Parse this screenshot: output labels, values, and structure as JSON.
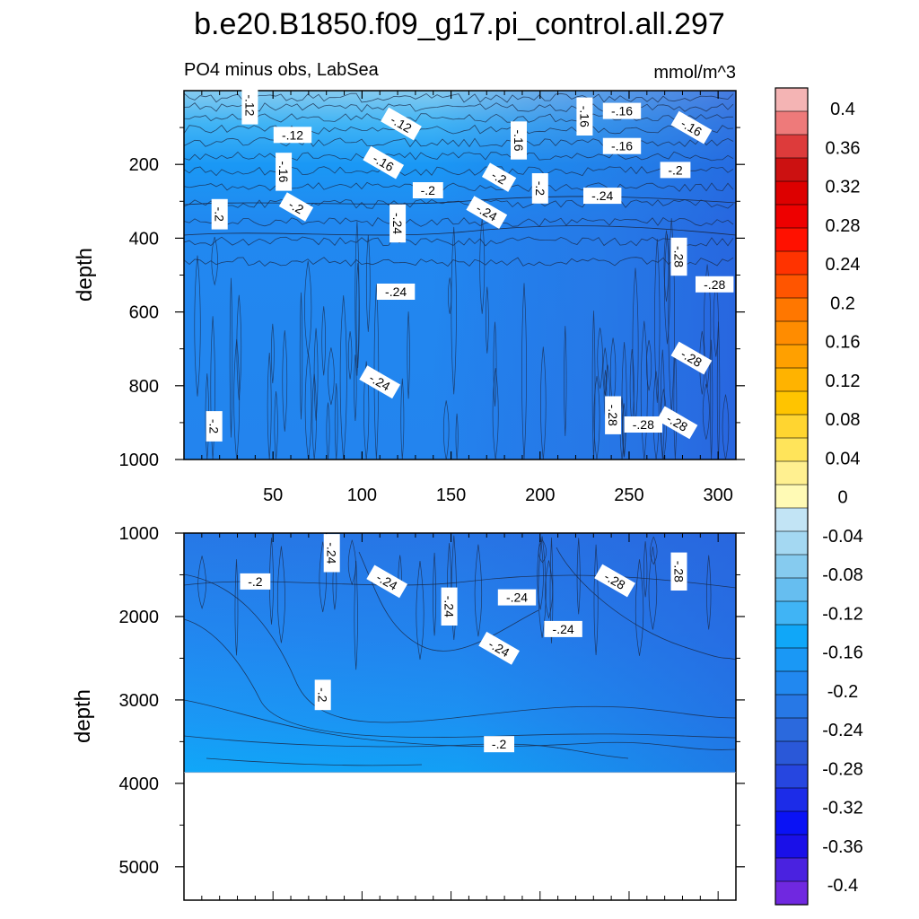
{
  "title": "b.e20.B1850.f09_g17.pi_control.all.297",
  "subtitle_left": "PO4 minus obs, LabSea",
  "subtitle_right": "mmol/m^3",
  "colorbar": {
    "labels": [
      "0.4",
      "0.36",
      "0.32",
      "0.28",
      "0.24",
      "0.2",
      "0.16",
      "0.12",
      "0.08",
      "0.04",
      "0",
      "-0.04",
      "-0.08",
      "-0.12",
      "-0.16",
      "-0.2",
      "-0.24",
      "-0.28",
      "-0.32",
      "-0.36",
      "-0.4"
    ],
    "colors_top_to_bottom": [
      "#F4B4B4",
      "#EE7A7A",
      "#DD3B3B",
      "#CC1111",
      "#DD0000",
      "#EE0000",
      "#FF1100",
      "#FF3300",
      "#FF5500",
      "#FF7700",
      "#FF8C00",
      "#FFA000",
      "#FFB300",
      "#FFC400",
      "#FFD530",
      "#FFE45A",
      "#FFF090",
      "#FFFAB5",
      "#C2E4F5",
      "#A4D8F2",
      "#86CBEF",
      "#66BEF0",
      "#40B4F5",
      "#10A7F8",
      "#1A98F5",
      "#2188F0",
      "#2778E6",
      "#2B69DD",
      "#2A58D8",
      "#2646E0",
      "#1C2CE8",
      "#0A12F5",
      "#1A10E8",
      "#4A22E0",
      "#7028E0"
    ]
  },
  "chart_data": [
    {
      "type": "contour",
      "panel": "upper",
      "xlabel": "",
      "ylabel": "depth",
      "xlim": [
        0,
        310
      ],
      "ylim": [
        1000,
        0
      ],
      "xticks": [
        50,
        100,
        150,
        200,
        250,
        300
      ],
      "yticks": [
        200,
        400,
        600,
        800,
        1000
      ],
      "contour_labels": [
        {
          "text": "-.12",
          "x": 37,
          "y": 40
        },
        {
          "text": "-.12",
          "x": 61,
          "y": 120
        },
        {
          "text": "-.12",
          "x": 122,
          "y": 90
        },
        {
          "text": "-.16",
          "x": 225,
          "y": 70
        },
        {
          "text": "-.16",
          "x": 246,
          "y": 55
        },
        {
          "text": "-.16",
          "x": 285,
          "y": 100
        },
        {
          "text": "-.16",
          "x": 188,
          "y": 135
        },
        {
          "text": "-.16",
          "x": 246,
          "y": 150
        },
        {
          "text": "-.16",
          "x": 112,
          "y": 195
        },
        {
          "text": "-.16",
          "x": 56,
          "y": 220
        },
        {
          "text": "-.2",
          "x": 276,
          "y": 215
        },
        {
          "text": "-.2",
          "x": 177,
          "y": 235
        },
        {
          "text": "-.2",
          "x": 200,
          "y": 265
        },
        {
          "text": "-.2",
          "x": 137,
          "y": 270
        },
        {
          "text": "-.2",
          "x": 63,
          "y": 315
        },
        {
          "text": "-.2",
          "x": 20,
          "y": 335
        },
        {
          "text": "-.24",
          "x": 235,
          "y": 285
        },
        {
          "text": "-.24",
          "x": 170,
          "y": 330
        },
        {
          "text": "-.24",
          "x": 120,
          "y": 360
        },
        {
          "text": "-.24",
          "x": 119,
          "y": 545
        },
        {
          "text": "-.24",
          "x": 110,
          "y": 790
        },
        {
          "text": "-.28",
          "x": 278,
          "y": 450
        },
        {
          "text": "-.28",
          "x": 298,
          "y": 525
        },
        {
          "text": "-.28",
          "x": 285,
          "y": 725
        },
        {
          "text": "-.28",
          "x": 241,
          "y": 880
        },
        {
          "text": "-.28",
          "x": 258,
          "y": 905
        },
        {
          "text": "-.28",
          "x": 277,
          "y": 900
        },
        {
          "text": "-.2",
          "x": 17,
          "y": 910
        }
      ]
    },
    {
      "type": "contour",
      "panel": "lower",
      "xlabel": "",
      "ylabel": "depth",
      "xlim": [
        0,
        310
      ],
      "ylim": [
        5400,
        1000
      ],
      "yticks": [
        1000,
        2000,
        3000,
        4000,
        5000
      ],
      "ocean_floor_depth": 3870,
      "contour_labels": [
        {
          "text": "-.24",
          "x": 83,
          "y": 1240
        },
        {
          "text": "-.2",
          "x": 40,
          "y": 1580
        },
        {
          "text": "-.24",
          "x": 114,
          "y": 1580
        },
        {
          "text": "-.24",
          "x": 149,
          "y": 1880
        },
        {
          "text": "-.24",
          "x": 187,
          "y": 1770
        },
        {
          "text": "-.28",
          "x": 242,
          "y": 1570
        },
        {
          "text": "-.28",
          "x": 278,
          "y": 1460
        },
        {
          "text": "-.24",
          "x": 213,
          "y": 2150
        },
        {
          "text": "-.24",
          "x": 177,
          "y": 2380
        },
        {
          "text": "-.2",
          "x": 78,
          "y": 2940
        },
        {
          "text": "-.2",
          "x": 177,
          "y": 3530
        }
      ]
    }
  ]
}
